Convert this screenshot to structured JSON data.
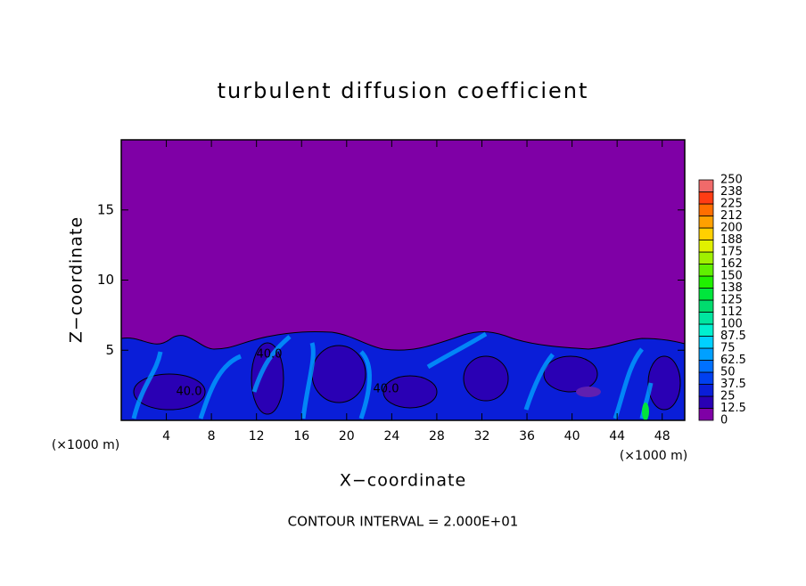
{
  "chart_data": {
    "type": "contour",
    "title": "turbulent diffusion coefficient",
    "x_label": "X−coordinate",
    "y_label": "Z−coordinate",
    "unit_labels": [
      "(×1000 m)",
      "(×1000 m)"
    ],
    "footer": "CONTOUR INTERVAL = 2.000E+01",
    "xlim": [
      0,
      50
    ],
    "ylim": [
      0,
      20
    ],
    "xticks": [
      4,
      8,
      12,
      16,
      20,
      24,
      28,
      32,
      36,
      40,
      44,
      48
    ],
    "yticks": [
      5,
      10,
      15
    ],
    "contour_labels": [
      "40.0",
      "40.0",
      "40.0"
    ],
    "colorbar": {
      "levels": [
        0,
        12.5,
        25,
        37.5,
        50,
        62.5,
        75,
        87.5,
        100,
        112,
        125,
        138,
        150,
        162,
        175,
        188,
        200,
        212,
        225,
        238,
        250
      ],
      "colors": [
        "#7f00a6",
        "#2a00b4",
        "#0a1ed8",
        "#0040f0",
        "#0070ff",
        "#00a0ff",
        "#00d0ff",
        "#00f0d0",
        "#00e6a0",
        "#00dc6e",
        "#00e63c",
        "#20f000",
        "#60f000",
        "#a0f000",
        "#e0f000",
        "#ffd000",
        "#ffa000",
        "#ff6e00",
        "#ff3c14",
        "#f06a6a"
      ]
    }
  }
}
